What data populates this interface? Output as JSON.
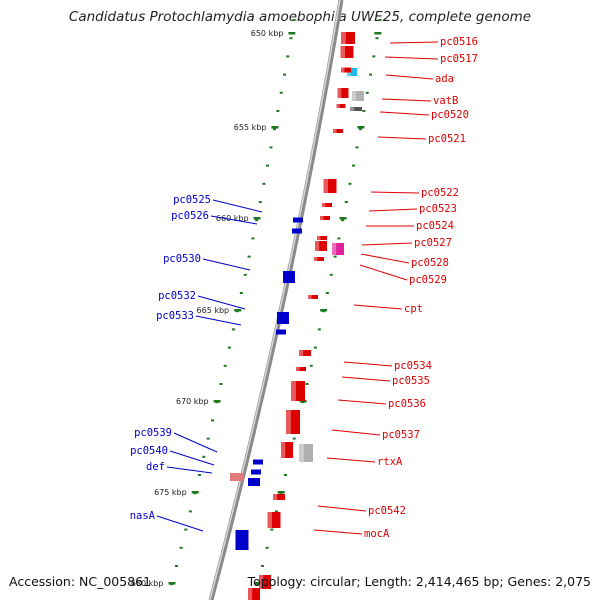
{
  "title": "Candidatus Protochlamydia amoebophila UWE25, complete genome",
  "footer": {
    "accession": "Accession: NC_005861",
    "summary": "Topology: circular; Length: 2,414,465 bp; Genes: 2,075"
  },
  "colors": {
    "forward": "#dd0000",
    "reverse": "#0000cc",
    "backbone": "#8a8a8a",
    "tick": "#1f7a1f",
    "gray_gene": "#b0b0b0",
    "cyan_gene": "#1fb8e8",
    "magenta_gene": "#e0209a",
    "pink_gene": "#e07a7a"
  },
  "ticks": [
    "650 kbp",
    "655 kbp",
    "660 kbp",
    "665 kbp",
    "670 kbp",
    "675 kbp",
    "680 kbp"
  ],
  "forward_labels": [
    "pc0516",
    "pc0517",
    "ada",
    "vatB",
    "pc0520",
    "pc0521",
    "pc0522",
    "pc0523",
    "pc0524",
    "pc0527",
    "pc0528",
    "pc0529",
    "cpt",
    "pc0534",
    "pc0535",
    "pc0536",
    "pc0537",
    "rtxA",
    "pc0542",
    "mocA"
  ],
  "reverse_labels": [
    "pc0525",
    "pc0526",
    "pc0530",
    "pc0532",
    "pc0533",
    "pc0539",
    "pc0540",
    "def",
    "nasA"
  ]
}
